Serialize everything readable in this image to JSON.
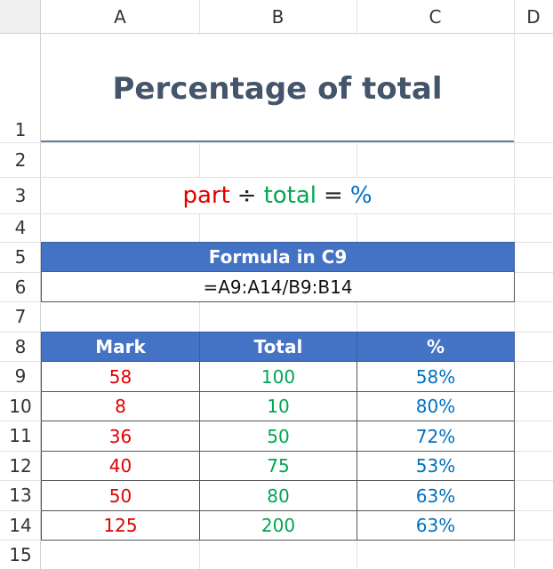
{
  "sheet": {
    "columns": [
      "A",
      "B",
      "C",
      "D"
    ],
    "rows": [
      "1",
      "2",
      "3",
      "4",
      "5",
      "6",
      "7",
      "8",
      "9",
      "10",
      "11",
      "12",
      "13",
      "14",
      "15"
    ],
    "title": "Percentage of total",
    "equation": [
      "part",
      "÷",
      "total",
      "=",
      "%"
    ],
    "formula_header": "Formula in C9",
    "formula": "=A9:A14/B9:B14",
    "table": {
      "headers": [
        "Mark",
        "Total",
        "%"
      ],
      "rows": [
        [
          "58",
          "100",
          "58%"
        ],
        [
          "8",
          "10",
          "80%"
        ],
        [
          "36",
          "50",
          "72%"
        ],
        [
          "40",
          "75",
          "53%"
        ],
        [
          "50",
          "80",
          "63%"
        ],
        [
          "125",
          "200",
          "63%"
        ]
      ]
    }
  }
}
